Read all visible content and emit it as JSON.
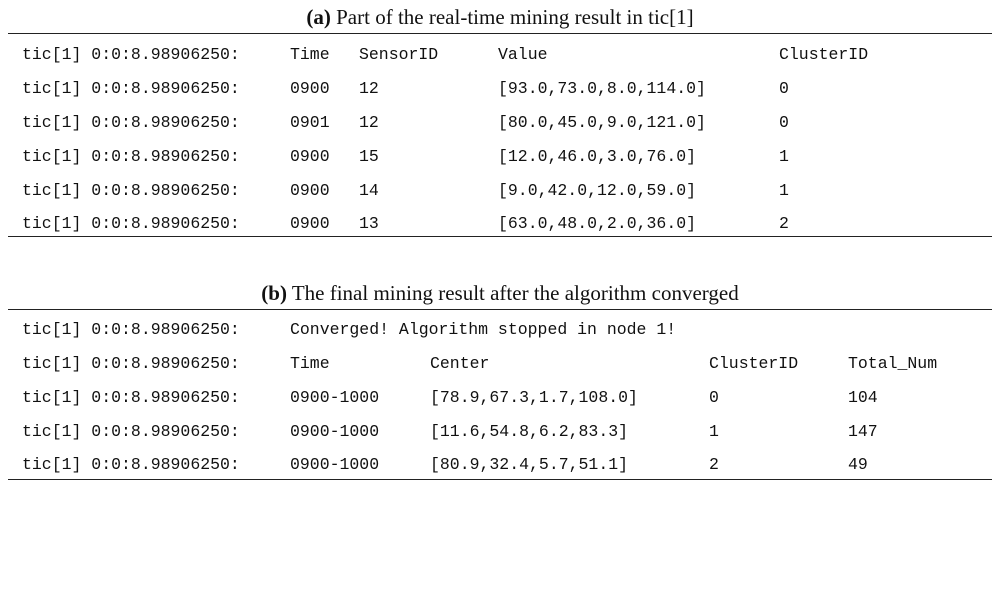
{
  "table_a": {
    "caption_label": "(a)",
    "caption_text": " Part of the real-time mining result in tic[1]",
    "header": {
      "prefix": "tic[1] 0:0:8.98906250:",
      "time": "Time",
      "sensor_id": "SensorID",
      "value": "Value",
      "cluster_id": "ClusterID"
    },
    "rows": [
      {
        "prefix": "tic[1] 0:0:8.98906250:",
        "time": "0900",
        "sensor_id": "12",
        "value": "[93.0,73.0,8.0,114.0]",
        "cluster_id": "0"
      },
      {
        "prefix": "tic[1] 0:0:8.98906250:",
        "time": "0901",
        "sensor_id": "12",
        "value": "[80.0,45.0,9.0,121.0]",
        "cluster_id": "0"
      },
      {
        "prefix": "tic[1] 0:0:8.98906250:",
        "time": "0900",
        "sensor_id": "15",
        "value": "[12.0,46.0,3.0,76.0]",
        "cluster_id": "1"
      },
      {
        "prefix": "tic[1] 0:0:8.98906250:",
        "time": "0900",
        "sensor_id": "14",
        "value": "[9.0,42.0,12.0,59.0]",
        "cluster_id": "1"
      },
      {
        "prefix": "tic[1] 0:0:8.98906250:",
        "time": "0900",
        "sensor_id": "13",
        "value": "[63.0,48.0,2.0,36.0]",
        "cluster_id": "2"
      }
    ]
  },
  "table_b": {
    "caption_label": "(b)",
    "caption_text": " The final mining result after the algorithm converged",
    "message": {
      "prefix": "tic[1] 0:0:8.98906250:",
      "text": "Converged! Algorithm stopped in node 1!"
    },
    "header": {
      "prefix": "tic[1] 0:0:8.98906250:",
      "time": "Time",
      "center": "Center",
      "cluster_id": "ClusterID",
      "total_num": "Total_Num"
    },
    "rows": [
      {
        "prefix": "tic[1] 0:0:8.98906250:",
        "time": "0900-1000",
        "center": "[78.9,67.3,1.7,108.0]",
        "cluster_id": "0",
        "total_num": "104"
      },
      {
        "prefix": "tic[1] 0:0:8.98906250:",
        "time": "0900-1000",
        "center": "[11.6,54.8,6.2,83.3]",
        "cluster_id": "1",
        "total_num": "147"
      },
      {
        "prefix": "tic[1] 0:0:8.98906250:",
        "time": "0900-1000",
        "center": "[80.9,32.4,5.7,51.1]",
        "cluster_id": "2",
        "total_num": "49"
      }
    ]
  }
}
